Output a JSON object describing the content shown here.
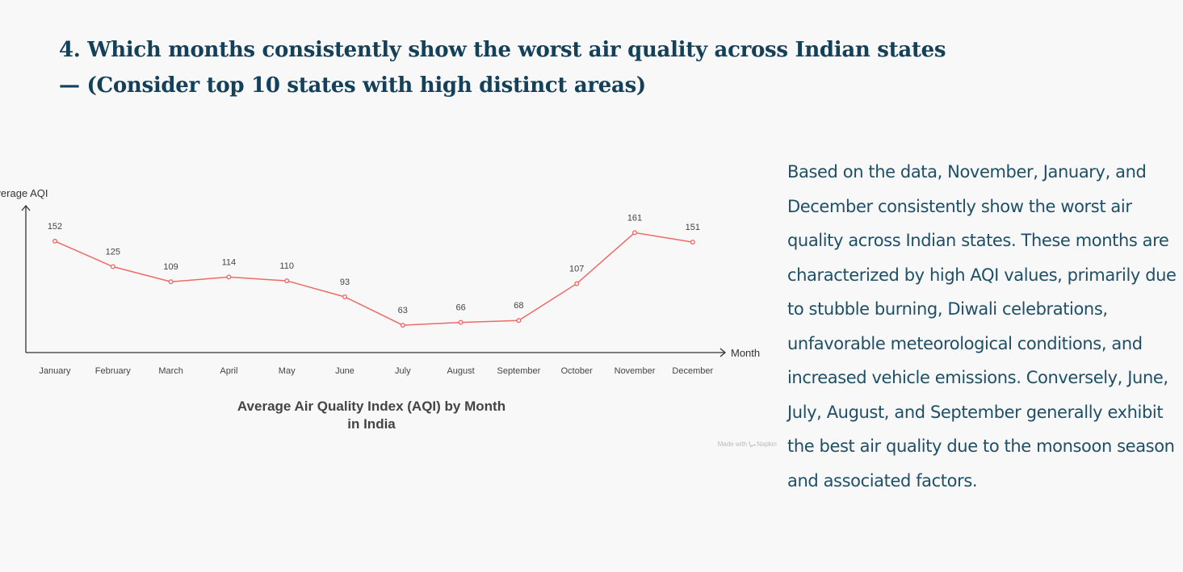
{
  "page": {
    "title": "4. Which months consistently show the worst air quality across Indian states — (Consider top 10 states with high distinct areas)",
    "insight": "Based on the  data, November, January, and December consistently show the worst air quality across Indian states. These months are characterized by high AQI values, primarily due to stubble burning, Diwali celebrations, unfavorable meteorological conditions, and increased vehicle emissions. Conversely, June, July, August, and September generally exhibit the best air quality due to the monsoon season and associated factors.",
    "watermark": "Made with",
    "watermark_brand": "Napkin"
  },
  "chart_data": {
    "type": "line",
    "title": "Average Air Quality Index (AQI) by Month in India",
    "xlabel": "Month",
    "ylabel": "Average AQI",
    "categories": [
      "January",
      "February",
      "March",
      "April",
      "May",
      "June",
      "July",
      "August",
      "September",
      "October",
      "November",
      "December"
    ],
    "values": [
      152,
      125,
      109,
      114,
      110,
      93,
      63,
      66,
      68,
      107,
      161,
      151
    ],
    "ylim": [
      40,
      175
    ],
    "grid": false,
    "data_labels": true,
    "color": "#ee6a66"
  }
}
